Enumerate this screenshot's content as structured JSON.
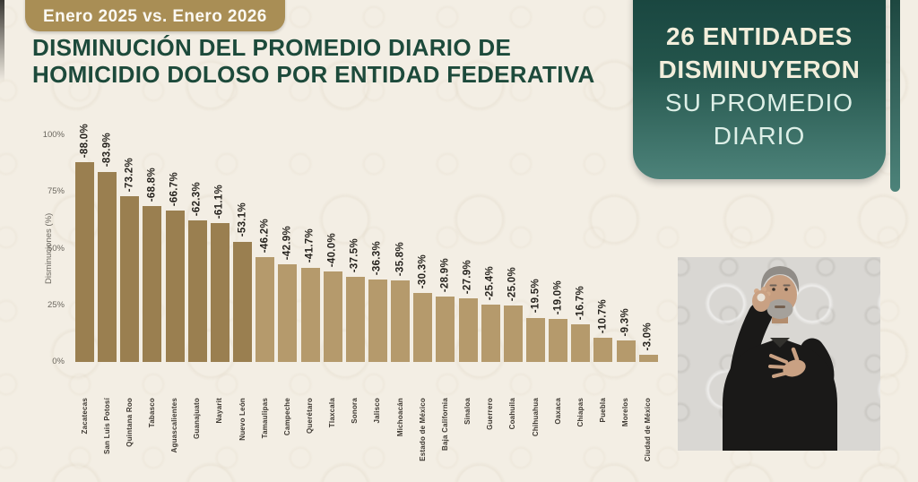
{
  "badge": {
    "label": "Enero 2025 vs. Enero 2026",
    "bg_color": "#a98e55"
  },
  "title": {
    "line1": "DISMINUCIÓN DEL PROMEDIO DIARIO DE",
    "line2": "HOMICIDIO DOLOSO POR ENTIDAD FEDERATIVA",
    "color": "#1d4a3b"
  },
  "info_panel": {
    "lines_bold": [
      "26 ENTIDADES",
      "DISMINUYERON"
    ],
    "lines_regular": [
      "SU PROMEDIO",
      "DIARIO"
    ],
    "bg_top": "#16413c",
    "bg_bottom": "#4d837a"
  },
  "chart_data": {
    "type": "bar",
    "title": "Disminución del promedio diario de homicidio doloso por entidad federativa, Enero 2025 vs. Enero 2026",
    "xlabel": "",
    "ylabel": "Disminuciones (%)",
    "yticks": [
      "0%",
      "25%",
      "50%",
      "75%",
      "100%"
    ],
    "ylim": [
      0,
      100
    ],
    "grid": false,
    "legend": null,
    "categories": [
      "Zacatecas",
      "San Luis Potosí",
      "Quintana Roo",
      "Tabasco",
      "Aguascalientes",
      "Guanajuato",
      "Nayarit",
      "Nuevo León",
      "Tamaulipas",
      "Campeche",
      "Querétaro",
      "Tlaxcala",
      "Sonora",
      "Jalisco",
      "Michoacán",
      "Estado de México",
      "Baja California",
      "Sinaloa",
      "Guerrero",
      "Coahuila",
      "Chihuahua",
      "Oaxaca",
      "Chiapas",
      "Puebla",
      "Morelos",
      "Ciudad de México"
    ],
    "values": [
      88.0,
      83.9,
      73.2,
      68.8,
      66.7,
      62.3,
      61.1,
      53.1,
      46.2,
      42.9,
      41.7,
      40.0,
      37.5,
      36.3,
      35.8,
      30.3,
      28.9,
      27.9,
      25.4,
      25.0,
      19.5,
      19.0,
      16.7,
      10.7,
      9.3,
      3.0
    ],
    "labels": [
      "-88.0%",
      "-83.9%",
      "-73.2%",
      "-68.8%",
      "-66.7%",
      "-62.3%",
      "-61.1%",
      "-53.1%",
      "-46.2%",
      "-42.9%",
      "-41.7%",
      "-40.0%",
      "-37.5%",
      "-36.3%",
      "-35.8%",
      "-30.3%",
      "-28.9%",
      "-27.9%",
      "-25.4%",
      "-25.0%",
      "-19.5%",
      "-19.0%",
      "-16.7%",
      "-10.7%",
      "-9.3%",
      "-3.0%"
    ],
    "highlight_count": 8,
    "colors": {
      "bar_dark": "#9a7f50",
      "bar_light": "#b59a6c",
      "value_label": "#26231e",
      "state_label": "#3f3a33",
      "tick_label": "#6a665e"
    }
  },
  "interpreter_box": {
    "semantic": "sign-language-interpreter-video",
    "bg_color": "#d9d7d3"
  }
}
